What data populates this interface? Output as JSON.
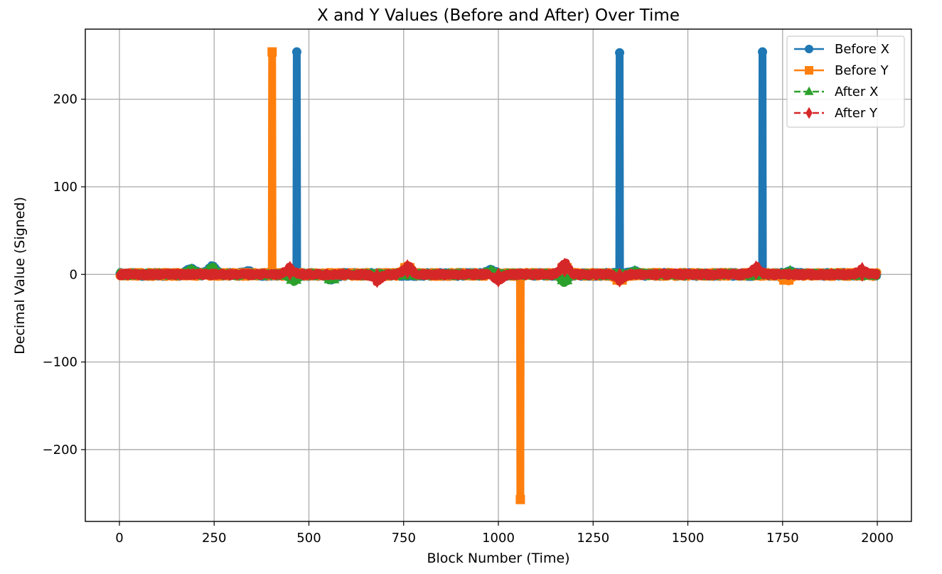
{
  "chart_data": {
    "type": "line",
    "title": "X and Y Values (Before and After) Over Time",
    "xlabel": "Block Number (Time)",
    "ylabel": "Decimal Value (Signed)",
    "xlim": [
      -90,
      2090
    ],
    "ylim": [
      -282,
      280
    ],
    "x_ticks": [
      0,
      250,
      500,
      750,
      1000,
      1250,
      1500,
      1750,
      2000
    ],
    "y_ticks": [
      -200,
      -100,
      0,
      100,
      200
    ],
    "grid": true,
    "legend_position": "top-right",
    "series": [
      {
        "name": "Before X",
        "color": "#1f77b4",
        "marker": "circle",
        "linestyle": "solid",
        "spikes": [
          [
            468,
            254
          ],
          [
            1320,
            253
          ],
          [
            1697,
            254
          ]
        ],
        "bumps": [
          [
            190,
            6
          ],
          [
            245,
            8
          ],
          [
            340,
            2
          ],
          [
            560,
            -5
          ],
          [
            980,
            4
          ],
          [
            1360,
            2
          ],
          [
            1770,
            2
          ]
        ]
      },
      {
        "name": "Before Y",
        "color": "#ff7f0e",
        "marker": "square",
        "linestyle": "solid",
        "spikes": [
          [
            403,
            254
          ],
          [
            1058,
            -257
          ]
        ],
        "bumps": [
          [
            760,
            8
          ],
          [
            1175,
            8
          ],
          [
            1320,
            -6
          ],
          [
            1760,
            -6
          ]
        ]
      },
      {
        "name": "After X",
        "color": "#2ca02c",
        "marker": "triangle",
        "linestyle": "dashed",
        "spikes": [],
        "bumps": [
          [
            190,
            5
          ],
          [
            245,
            7
          ],
          [
            460,
            -7
          ],
          [
            560,
            -6
          ],
          [
            980,
            3
          ],
          [
            1175,
            -8
          ],
          [
            1360,
            2
          ],
          [
            1770,
            2
          ]
        ]
      },
      {
        "name": "After Y",
        "color": "#d62728",
        "marker": "diamond",
        "linestyle": "dashed",
        "spikes": [],
        "bumps": [
          [
            450,
            7
          ],
          [
            680,
            -7
          ],
          [
            760,
            10
          ],
          [
            1000,
            -6
          ],
          [
            1175,
            13
          ],
          [
            1320,
            -6
          ],
          [
            1680,
            8
          ],
          [
            1960,
            5
          ]
        ]
      }
    ],
    "noise_amplitude": 3
  }
}
